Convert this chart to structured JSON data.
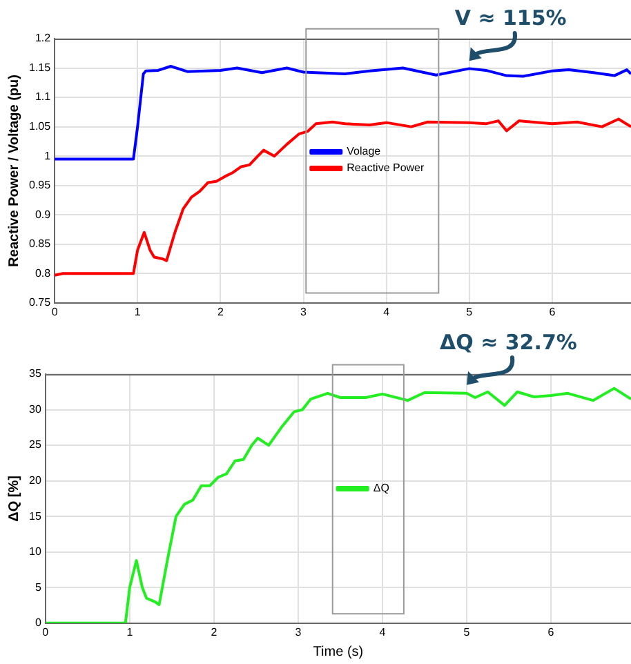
{
  "chart_data": [
    {
      "type": "line",
      "ylabel": "Reactive Power / Voltage (pu)",
      "xlim": [
        0,
        6.95
      ],
      "xticks": [
        0,
        1,
        2,
        3,
        4,
        5,
        6
      ],
      "ylim": [
        0.75,
        1.2
      ],
      "yticks": [
        0.75,
        0.8,
        0.85,
        0.9,
        0.95,
        1,
        1.05,
        1.1,
        1.15,
        1.2
      ],
      "grid": true,
      "legend": "center",
      "marker": "none",
      "line_style": "solid",
      "annotations": [
        {
          "text": "V ≈ 115%",
          "x": 5,
          "y": 1.148
        }
      ],
      "series": [
        {
          "name": "Volage",
          "color": "#0000ff",
          "x": [
            0,
            0.5,
            0.95,
            1.0,
            1.07,
            1.1,
            1.25,
            1.4,
            1.6,
            2.0,
            2.2,
            2.5,
            2.8,
            3.0,
            3.5,
            3.8,
            4.2,
            4.6,
            5.0,
            5.2,
            5.45,
            5.65,
            6.0,
            6.2,
            6.5,
            6.75,
            6.9,
            6.95
          ],
          "values": [
            0.995,
            0.995,
            0.995,
            1.05,
            1.14,
            1.145,
            1.146,
            1.153,
            1.144,
            1.146,
            1.15,
            1.142,
            1.15,
            1.143,
            1.14,
            1.145,
            1.15,
            1.138,
            1.149,
            1.146,
            1.137,
            1.136,
            1.145,
            1.147,
            1.142,
            1.137,
            1.147,
            1.14
          ]
        },
        {
          "name": "Reactive Power",
          "color": "#ff0000",
          "x": [
            0,
            0.1,
            0.95,
            1.0,
            1.08,
            1.15,
            1.2,
            1.3,
            1.35,
            1.45,
            1.55,
            1.65,
            1.75,
            1.85,
            1.95,
            2.05,
            2.15,
            2.25,
            2.35,
            2.45,
            2.52,
            2.65,
            2.8,
            2.95,
            3.05,
            3.15,
            3.35,
            3.5,
            3.8,
            4.0,
            4.3,
            4.5,
            5.0,
            5.2,
            5.35,
            5.45,
            5.6,
            6.0,
            6.3,
            6.6,
            6.8,
            6.95
          ],
          "values": [
            0.797,
            0.8,
            0.8,
            0.84,
            0.87,
            0.84,
            0.828,
            0.825,
            0.822,
            0.87,
            0.91,
            0.93,
            0.94,
            0.955,
            0.957,
            0.965,
            0.972,
            0.982,
            0.985,
            1.0,
            1.01,
            1.0,
            1.02,
            1.038,
            1.042,
            1.055,
            1.058,
            1.055,
            1.053,
            1.057,
            1.05,
            1.058,
            1.057,
            1.055,
            1.06,
            1.043,
            1.06,
            1.055,
            1.058,
            1.05,
            1.063,
            1.05
          ]
        }
      ]
    },
    {
      "type": "line",
      "xlabel": "Time (s)",
      "ylabel": "ΔQ [%]",
      "xlim": [
        0,
        6.95
      ],
      "xticks": [
        0,
        1,
        2,
        3,
        4,
        5,
        6
      ],
      "ylim": [
        0,
        35
      ],
      "yticks": [
        0,
        5,
        10,
        15,
        20,
        25,
        30,
        35
      ],
      "grid": true,
      "legend": "center",
      "marker": "none",
      "line_style": "solid",
      "annotations": [
        {
          "text": "ΔQ ≈ 32.7%",
          "x": 5,
          "y": 32.3
        }
      ],
      "series": [
        {
          "name": "ΔQ",
          "color": "#22ee22",
          "x": [
            0,
            0.5,
            0.95,
            1.0,
            1.08,
            1.15,
            1.2,
            1.3,
            1.35,
            1.45,
            1.55,
            1.65,
            1.75,
            1.85,
            1.95,
            2.05,
            2.15,
            2.25,
            2.35,
            2.45,
            2.52,
            2.65,
            2.8,
            2.95,
            3.05,
            3.15,
            3.35,
            3.5,
            3.8,
            4.0,
            4.3,
            4.5,
            5.0,
            5.1,
            5.25,
            5.45,
            5.6,
            5.8,
            6.0,
            6.2,
            6.5,
            6.75,
            6.95
          ],
          "values": [
            0,
            0,
            0,
            5,
            8.8,
            5,
            3.5,
            3,
            2.6,
            9,
            15,
            16.7,
            17.3,
            19.3,
            19.3,
            20.5,
            21,
            22.8,
            23,
            25,
            26,
            25,
            27.5,
            29.7,
            30,
            31.5,
            32.3,
            31.7,
            31.7,
            32.2,
            31.3,
            32.4,
            32.3,
            31.7,
            32.5,
            30.6,
            32.5,
            31.8,
            32,
            32.3,
            31.3,
            33,
            31.5
          ]
        }
      ]
    }
  ]
}
